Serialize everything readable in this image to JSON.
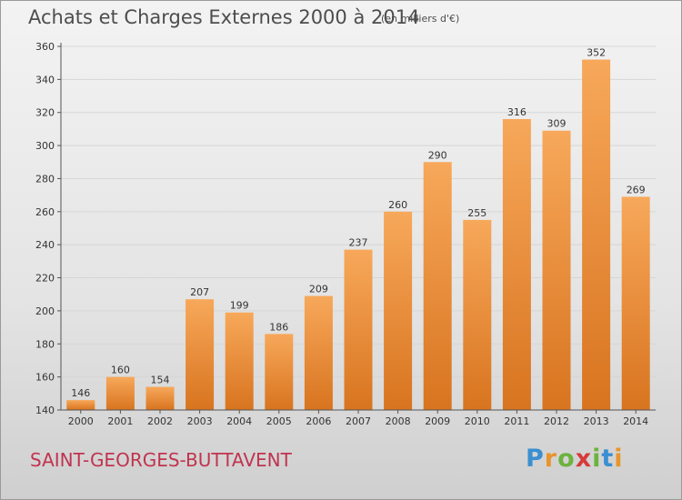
{
  "title": "Achats et Charges Externes 2000 à 2014",
  "subtitle": "(en milliers d'€)",
  "location": "SAINT-GEORGES-BUTTAVENT",
  "logo": {
    "text": "Proxiti",
    "letter_colors": [
      "#3a8fd1",
      "#e8952c",
      "#6cb33e",
      "#d63a3a",
      "#6cb33e",
      "#3a8fd1",
      "#e8952c"
    ]
  },
  "colors": {
    "bar_top": "#f7a85a",
    "bar_bottom": "#d8741f",
    "grid": "#d6d6d6",
    "axis": "#555555"
  },
  "chart_data": {
    "type": "bar",
    "categories": [
      "2000",
      "2001",
      "2002",
      "2003",
      "2004",
      "2005",
      "2006",
      "2007",
      "2008",
      "2009",
      "2010",
      "2011",
      "2012",
      "2013",
      "2014"
    ],
    "values": [
      146,
      160,
      154,
      207,
      199,
      186,
      209,
      237,
      260,
      290,
      255,
      316,
      309,
      352,
      269
    ],
    "ylim": [
      140,
      360
    ],
    "yticks": [
      140,
      160,
      180,
      200,
      220,
      240,
      260,
      280,
      300,
      320,
      340,
      360
    ],
    "grid": true,
    "xlabel": "",
    "ylabel": ""
  }
}
